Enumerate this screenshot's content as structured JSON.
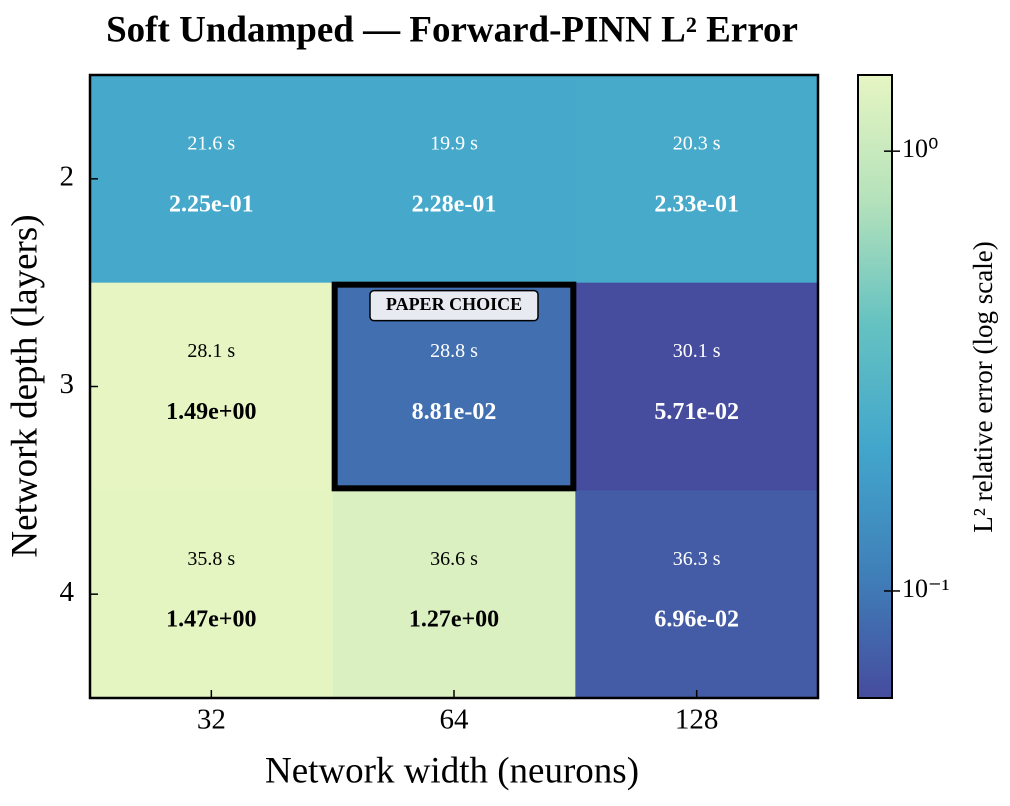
{
  "chart_data": {
    "type": "heatmap",
    "title": "Soft Undamped — Forward-PINN L² Error",
    "x_label": "Network width (neurons)",
    "y_label": "Network depth (layers)",
    "x_categories": [
      "32",
      "64",
      "128"
    ],
    "y_categories": [
      "2",
      "3",
      "4"
    ],
    "values": [
      [
        0.225,
        0.228,
        0.233
      ],
      [
        1.49,
        0.0881,
        0.0571
      ],
      [
        1.47,
        1.27,
        0.0696
      ]
    ],
    "value_labels": [
      [
        "2.25e-01",
        "2.28e-01",
        "2.33e-01"
      ],
      [
        "1.49e+00",
        "8.81e-02",
        "5.71e-02"
      ],
      [
        "1.47e+00",
        "1.27e+00",
        "6.96e-02"
      ]
    ],
    "time_labels": [
      [
        "21.6 s",
        "19.9 s",
        "20.3 s"
      ],
      [
        "28.1 s",
        "28.8 s",
        "30.1 s"
      ],
      [
        "35.8 s",
        "36.6 s",
        "36.3 s"
      ]
    ],
    "highlight": {
      "x": "64",
      "y": "3",
      "label": "PAPER CHOICE"
    },
    "colorbar": {
      "label": "L² relative error (log scale)",
      "scale": "log",
      "zlim": [
        0.0571,
        1.49
      ],
      "ticks": [
        {
          "value": 1,
          "label": "10⁰"
        },
        {
          "value": 0.1,
          "label": "10⁻¹"
        }
      ],
      "colormap": [
        "#464c9e",
        "#3f80b9",
        "#42a6cc",
        "#65c2c1",
        "#b5e2bb",
        "#e6f5c2"
      ]
    }
  }
}
